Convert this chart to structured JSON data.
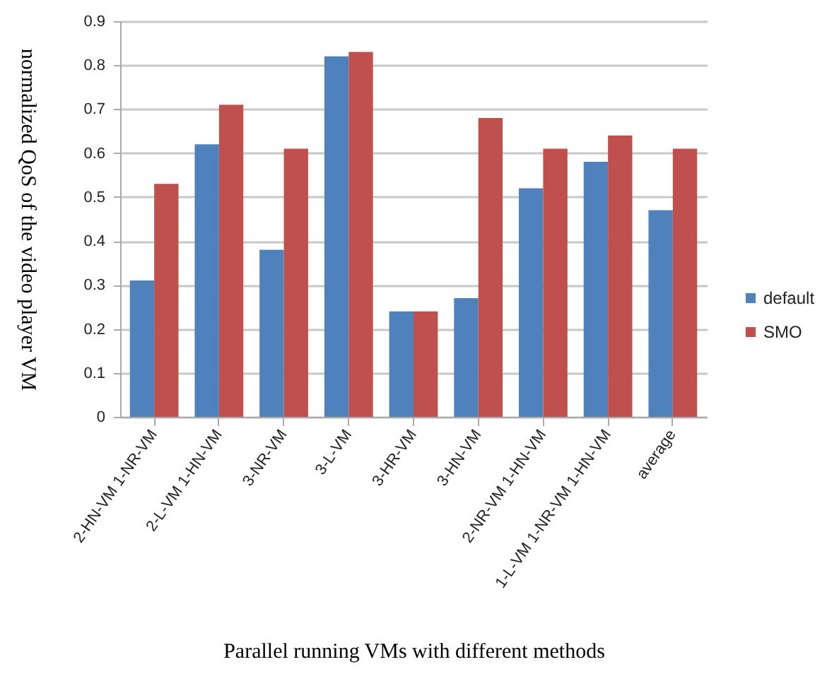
{
  "chart_data": {
    "type": "bar",
    "xlabel": "Parallel running VMs with different methods",
    "ylabel": "normalized QoS of the video player VM",
    "categories": [
      "2-HN-VM 1-NR-VM",
      "2-L-VM 1-HN-VM",
      "3-NR-VM",
      "3-L-VM",
      "3-HR-VM",
      "3-HN-VM",
      "2-NR-VM 1-HN-VM",
      "1-L-VM 1-NR-VM 1-HN-VM",
      "average"
    ],
    "series": [
      {
        "name": "default",
        "color": "#4f81bd",
        "values": [
          0.31,
          0.62,
          0.38,
          0.82,
          0.24,
          0.27,
          0.52,
          0.58,
          0.47
        ]
      },
      {
        "name": "SMO",
        "color": "#c0504d",
        "values": [
          0.53,
          0.71,
          0.61,
          0.83,
          0.24,
          0.68,
          0.61,
          0.64,
          0.61
        ]
      }
    ],
    "ylim": [
      0,
      0.9
    ],
    "yticks": [
      0,
      0.1,
      0.2,
      0.3,
      0.4,
      0.5,
      0.6,
      0.7,
      0.8,
      0.9
    ],
    "grid": true,
    "legend": "right"
  }
}
